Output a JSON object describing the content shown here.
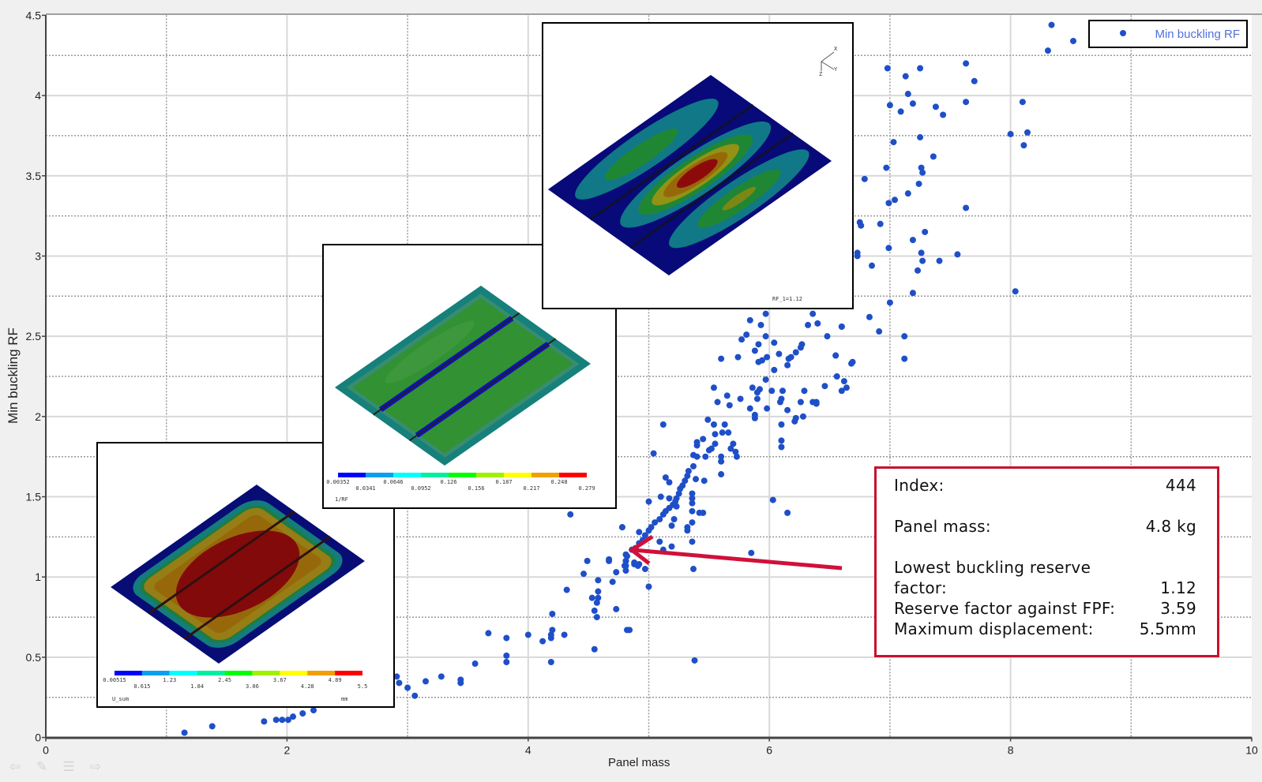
{
  "chart_data": {
    "type": "scatter",
    "xlabel": "Panel mass",
    "ylabel": "Min buckling RF",
    "xlim": [
      0,
      10
    ],
    "ylim": [
      0,
      4.5
    ],
    "x_ticks": [
      "0",
      "2",
      "4",
      "6",
      "8",
      "10"
    ],
    "y_ticks": [
      "0",
      "0.5",
      "1",
      "1.5",
      "2",
      "2.5",
      "3",
      "3.5",
      "4",
      "4.5"
    ],
    "grid": true,
    "legend_position": "top-right",
    "series": [
      {
        "name": "Min buckling RF",
        "color": "#1f4fc8",
        "points": [
          [
            1.15,
            0.03
          ],
          [
            1.38,
            0.07
          ],
          [
            1.81,
            0.1
          ],
          [
            1.91,
            0.11
          ],
          [
            1.96,
            0.11
          ],
          [
            2.01,
            0.11
          ],
          [
            2.05,
            0.13
          ],
          [
            2.13,
            0.15
          ],
          [
            2.22,
            0.17
          ],
          [
            2.22,
            0.2
          ],
          [
            2.91,
            0.38
          ],
          [
            2.93,
            0.34
          ],
          [
            3.0,
            0.31
          ],
          [
            3.06,
            0.26
          ],
          [
            3.15,
            0.35
          ],
          [
            3.28,
            0.38
          ],
          [
            3.44,
            0.36
          ],
          [
            3.44,
            0.34
          ],
          [
            3.56,
            0.46
          ],
          [
            3.67,
            0.65
          ],
          [
            3.82,
            0.62
          ],
          [
            3.82,
            0.51
          ],
          [
            3.82,
            0.47
          ],
          [
            4.0,
            0.64
          ],
          [
            4.12,
            0.6
          ],
          [
            4.19,
            0.64
          ],
          [
            4.19,
            0.62
          ],
          [
            4.2,
            0.67
          ],
          [
            4.2,
            0.77
          ],
          [
            4.19,
            0.47
          ],
          [
            4.3,
            0.64
          ],
          [
            4.32,
            0.92
          ],
          [
            4.35,
            1.39
          ],
          [
            4.46,
            1.02
          ],
          [
            4.49,
            1.1
          ],
          [
            4.53,
            0.87
          ],
          [
            4.55,
            0.79
          ],
          [
            4.55,
            0.55
          ],
          [
            4.57,
            0.84
          ],
          [
            4.57,
            0.75
          ],
          [
            4.58,
            0.98
          ],
          [
            4.58,
            0.91
          ],
          [
            4.58,
            0.87
          ],
          [
            4.67,
            1.11
          ],
          [
            4.7,
            0.97
          ],
          [
            4.73,
            1.03
          ],
          [
            4.73,
            0.8
          ],
          [
            4.78,
            1.31
          ],
          [
            4.81,
            1.14
          ],
          [
            4.81,
            1.1
          ],
          [
            4.81,
            1.07
          ],
          [
            4.81,
            1.04
          ],
          [
            4.82,
            0.67
          ],
          [
            4.84,
            0.67
          ],
          [
            4.88,
            1.09
          ],
          [
            4.92,
            1.08
          ],
          [
            4.97,
            1.05
          ],
          [
            5.0,
            0.94
          ],
          [
            5.38,
            0.48
          ],
          [
            4.67,
            1.1
          ],
          [
            4.78,
            1.31
          ],
          [
            4.8,
            1.07
          ],
          [
            4.81,
            1.1
          ],
          [
            4.82,
            1.13
          ],
          [
            4.86,
            1.17
          ],
          [
            4.88,
            1.08
          ],
          [
            4.89,
            1.18
          ],
          [
            4.91,
            1.07
          ],
          [
            4.92,
            1.21
          ],
          [
            4.92,
            1.28
          ],
          [
            4.95,
            1.23
          ],
          [
            4.97,
            1.26
          ],
          [
            5.0,
            1.29
          ],
          [
            5.0,
            1.47
          ],
          [
            5.02,
            1.31
          ],
          [
            5.04,
            1.77
          ],
          [
            5.05,
            1.34
          ],
          [
            5.09,
            1.36
          ],
          [
            5.09,
            1.22
          ],
          [
            5.1,
            1.5
          ],
          [
            5.12,
            1.39
          ],
          [
            5.12,
            1.17
          ],
          [
            5.12,
            1.95
          ],
          [
            5.14,
            1.41
          ],
          [
            5.14,
            1.62
          ],
          [
            5.17,
            1.43
          ],
          [
            5.17,
            1.59
          ],
          [
            5.17,
            1.49
          ],
          [
            5.19,
            1.32
          ],
          [
            5.19,
            1.19
          ],
          [
            5.2,
            1.45
          ],
          [
            5.21,
            1.36
          ],
          [
            5.22,
            1.47
          ],
          [
            5.23,
            1.49
          ],
          [
            5.23,
            1.44
          ],
          [
            5.25,
            1.52
          ],
          [
            5.26,
            1.55
          ],
          [
            5.28,
            1.57
          ],
          [
            5.3,
            1.6
          ],
          [
            5.32,
            1.63
          ],
          [
            5.32,
            1.31
          ],
          [
            5.32,
            1.29
          ],
          [
            5.33,
            1.66
          ],
          [
            5.36,
            1.52
          ],
          [
            5.36,
            1.49
          ],
          [
            5.36,
            1.46
          ],
          [
            5.36,
            1.41
          ],
          [
            5.36,
            1.34
          ],
          [
            5.36,
            1.22
          ],
          [
            5.37,
            1.69
          ],
          [
            5.37,
            1.05
          ],
          [
            5.37,
            1.76
          ],
          [
            5.39,
            1.61
          ],
          [
            5.4,
            1.84
          ],
          [
            5.4,
            1.82
          ],
          [
            5.4,
            1.75
          ],
          [
            5.42,
            1.4
          ],
          [
            5.45,
            1.4
          ],
          [
            5.45,
            1.86
          ],
          [
            5.46,
            1.6
          ],
          [
            5.47,
            1.75
          ],
          [
            5.49,
            1.98
          ],
          [
            5.5,
            1.79
          ],
          [
            5.52,
            1.8
          ],
          [
            5.54,
            1.95
          ],
          [
            5.54,
            2.18
          ],
          [
            5.55,
            1.89
          ],
          [
            5.55,
            1.83
          ],
          [
            5.57,
            2.09
          ],
          [
            5.6,
            2.36
          ],
          [
            5.6,
            1.75
          ],
          [
            5.6,
            1.72
          ],
          [
            5.6,
            1.64
          ],
          [
            5.61,
            1.9
          ],
          [
            5.63,
            1.95
          ],
          [
            5.65,
            2.13
          ],
          [
            5.66,
            1.9
          ],
          [
            5.67,
            2.07
          ],
          [
            5.68,
            1.8
          ],
          [
            5.7,
            1.83
          ],
          [
            5.72,
            1.78
          ],
          [
            5.73,
            1.75
          ],
          [
            5.74,
            2.37
          ],
          [
            5.76,
            2.11
          ],
          [
            5.77,
            2.48
          ],
          [
            5.81,
            2.51
          ],
          [
            5.84,
            2.6
          ],
          [
            5.84,
            2.05
          ],
          [
            5.85,
            1.15
          ],
          [
            5.86,
            2.18
          ],
          [
            5.88,
            2.41
          ],
          [
            5.88,
            2.01
          ],
          [
            5.88,
            1.99
          ],
          [
            5.9,
            2.15
          ],
          [
            5.9,
            2.11
          ],
          [
            5.91,
            2.45
          ],
          [
            5.91,
            2.34
          ],
          [
            5.92,
            2.17
          ],
          [
            5.93,
            2.57
          ],
          [
            5.94,
            2.35
          ],
          [
            5.97,
            2.64
          ],
          [
            5.97,
            2.5
          ],
          [
            5.97,
            2.23
          ],
          [
            5.98,
            2.37
          ],
          [
            5.98,
            2.05
          ],
          [
            6.02,
            2.16
          ],
          [
            6.03,
            1.48
          ],
          [
            6.04,
            2.46
          ],
          [
            6.04,
            2.29
          ],
          [
            6.08,
            2.39
          ],
          [
            6.09,
            2.09
          ],
          [
            6.1,
            2.11
          ],
          [
            6.1,
            1.95
          ],
          [
            6.1,
            1.85
          ],
          [
            6.1,
            1.81
          ],
          [
            6.11,
            2.16
          ],
          [
            6.15,
            2.32
          ],
          [
            6.15,
            2.04
          ],
          [
            6.15,
            1.4
          ],
          [
            6.16,
            2.36
          ],
          [
            6.18,
            2.37
          ],
          [
            6.21,
            1.97
          ],
          [
            6.22,
            2.4
          ],
          [
            6.22,
            1.99
          ],
          [
            6.26,
            2.43
          ],
          [
            6.26,
            2.09
          ],
          [
            6.27,
            2.45
          ],
          [
            6.28,
            2.0
          ],
          [
            6.29,
            2.16
          ],
          [
            6.32,
            2.57
          ],
          [
            6.36,
            2.64
          ],
          [
            6.36,
            2.09
          ],
          [
            6.39,
            2.09
          ],
          [
            6.39,
            2.08
          ],
          [
            6.4,
            2.58
          ],
          [
            6.46,
            2.19
          ],
          [
            6.48,
            2.5
          ],
          [
            6.55,
            2.38
          ],
          [
            6.55,
            2.38
          ],
          [
            6.56,
            2.25
          ],
          [
            6.6,
            2.56
          ],
          [
            6.6,
            2.16
          ],
          [
            6.6,
            2.56
          ],
          [
            6.62,
            2.22
          ],
          [
            6.64,
            2.18
          ],
          [
            6.68,
            2.33
          ],
          [
            6.69,
            2.34
          ],
          [
            6.73,
            3.02
          ],
          [
            6.73,
            3.0
          ],
          [
            6.75,
            3.21
          ],
          [
            6.76,
            3.19
          ],
          [
            6.79,
            3.48
          ],
          [
            6.83,
            2.62
          ],
          [
            6.85,
            2.94
          ],
          [
            6.91,
            2.53
          ],
          [
            6.92,
            3.2
          ],
          [
            6.97,
            3.55
          ],
          [
            6.98,
            4.17
          ],
          [
            6.99,
            3.05
          ],
          [
            6.99,
            3.33
          ],
          [
            7.0,
            3.94
          ],
          [
            7.0,
            2.71
          ],
          [
            7.03,
            3.71
          ],
          [
            7.04,
            3.35
          ],
          [
            7.09,
            3.9
          ],
          [
            7.12,
            2.5
          ],
          [
            7.12,
            2.36
          ],
          [
            7.13,
            4.12
          ],
          [
            7.15,
            4.01
          ],
          [
            7.15,
            3.39
          ],
          [
            7.19,
            3.95
          ],
          [
            7.23,
            2.91
          ],
          [
            7.24,
            3.45
          ],
          [
            7.25,
            4.17
          ],
          [
            7.25,
            3.74
          ],
          [
            7.26,
            3.02
          ],
          [
            7.26,
            3.55
          ],
          [
            7.27,
            3.52
          ],
          [
            7.27,
            2.97
          ],
          [
            7.29,
            3.15
          ],
          [
            7.19,
            3.1
          ],
          [
            7.19,
            2.77
          ],
          [
            7.36,
            3.62
          ],
          [
            7.38,
            3.93
          ],
          [
            7.41,
            2.97
          ],
          [
            7.44,
            3.88
          ],
          [
            7.56,
            3.01
          ],
          [
            7.63,
            4.2
          ],
          [
            7.63,
            3.96
          ],
          [
            7.63,
            3.3
          ],
          [
            7.7,
            4.09
          ],
          [
            8.0,
            3.76
          ],
          [
            8.04,
            2.78
          ],
          [
            8.1,
            3.96
          ],
          [
            8.11,
            3.69
          ],
          [
            8.14,
            3.77
          ],
          [
            8.31,
            4.28
          ],
          [
            8.34,
            4.44
          ],
          [
            8.52,
            4.34
          ]
        ]
      }
    ]
  },
  "legend": {
    "label": "Min buckling RF"
  },
  "insets": {
    "displacement": {
      "colorbar_labels": [
        "0.00515",
        "0.615",
        "1.23",
        "1.84",
        "2.45",
        "3.06",
        "3.67",
        "4.28",
        "4.89",
        "5.5"
      ],
      "variable": "U_sum",
      "unit": "mm"
    },
    "inverse_rf": {
      "colorbar_labels": [
        "0.00352",
        "0.0341",
        "0.0646",
        "0.0952",
        "0.126",
        "0.156",
        "0.187",
        "0.217",
        "0.248",
        "0.279"
      ],
      "variable": "1/RF"
    },
    "buckling_mode": {
      "caption": "RF_1=1.12",
      "triad": {
        "x": "X",
        "y": "Y",
        "z": "Z"
      }
    },
    "colorbar_colors": [
      "#0000ff",
      "#0aa0f0",
      "#00ffff",
      "#00f0a0",
      "#00ff00",
      "#a0f000",
      "#ffff00",
      "#f0a000",
      "#ff0000"
    ]
  },
  "info_box": {
    "index_label": "Index:",
    "index_value": "444",
    "mass_label": "Panel mass:",
    "mass_value": "4.8 kg",
    "rf_label_line1": "Lowest buckling reserve",
    "rf_label_line2": "factor:",
    "rf_value": "1.12",
    "fpf_label": "Reserve factor against FPF:",
    "fpf_value": "3.59",
    "disp_label": "Maximum displacement:",
    "disp_value": "5.5mm",
    "border_color": "#c8102e"
  },
  "toolbar": {
    "icons": [
      "back-arrow-icon",
      "pen-icon",
      "list-icon",
      "forward-arrow-icon"
    ]
  }
}
